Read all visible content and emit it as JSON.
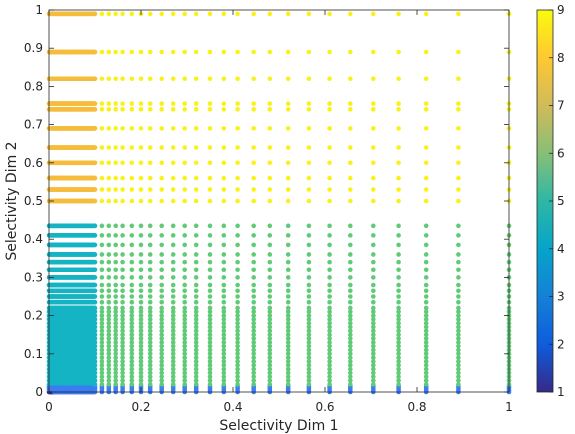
{
  "chart_data": {
    "type": "scatter",
    "xlabel": "Selectivity Dim 1",
    "ylabel": "Selectivity Dim 2",
    "xlim": [
      0,
      1
    ],
    "ylim": [
      0,
      1
    ],
    "x_ticks": [
      0,
      0.2,
      0.4,
      0.6,
      0.8,
      1
    ],
    "x_tick_labels": [
      "0",
      "0.2",
      "0.4",
      "0.6",
      "0.8",
      "1"
    ],
    "y_ticks": [
      0,
      0.1,
      0.2,
      0.3,
      0.4,
      0.5,
      0.6,
      0.7,
      0.8,
      0.9,
      1
    ],
    "y_tick_labels": [
      "0",
      "0.1",
      "0.2",
      "0.3",
      "0.4",
      "0.5",
      "0.6",
      "0.7",
      "0.8",
      "0.9",
      "1"
    ],
    "grid": false,
    "colormap": "parula",
    "color_range": [
      1,
      9
    ],
    "colorbar_ticks": [
      1,
      2,
      3,
      4,
      5,
      6,
      7,
      8,
      9
    ],
    "colorbar_tick_labels": [
      "1",
      "2",
      "3",
      "4",
      "5",
      "6",
      "7",
      "8",
      "9"
    ],
    "colors": {
      "c1": "#352a87",
      "c3": "#3c7cf4",
      "c5": "#15b4c4",
      "c6": "#5fcb77",
      "c8": "#f5bd3c",
      "c9": "#f9f21a"
    },
    "grid_x_coarse": [
      0,
      0.015,
      0.03,
      0.045,
      0.06,
      0.075,
      0.09,
      0.1,
      0.115,
      0.13,
      0.145,
      0.16,
      0.18,
      0.2,
      0.22,
      0.245,
      0.27,
      0.295,
      0.32,
      0.35,
      0.38,
      0.41,
      0.445,
      0.48,
      0.52,
      0.565,
      0.61,
      0.655,
      0.705,
      0.76,
      0.82,
      0.89,
      1
    ],
    "grid_y": [
      0,
      0.005,
      0.01,
      0.015,
      0.02,
      0.03,
      0.04,
      0.05,
      0.06,
      0.07,
      0.08,
      0.09,
      0.1,
      0.11,
      0.12,
      0.13,
      0.14,
      0.15,
      0.16,
      0.17,
      0.18,
      0.19,
      0.2,
      0.21,
      0.22,
      0.235,
      0.25,
      0.265,
      0.28,
      0.3,
      0.32,
      0.34,
      0.36,
      0.385,
      0.41,
      0.435,
      0.5,
      0.53,
      0.56,
      0.6,
      0.64,
      0.69,
      0.74,
      0.755,
      0.82,
      0.89,
      0.99
    ],
    "regions": [
      {
        "x_range": [
          0,
          0.1
        ],
        "y_range": [
          0.46,
          1.0
        ],
        "value": 8
      },
      {
        "x_range": [
          0.1,
          1.0
        ],
        "y_range": [
          0.46,
          1.0
        ],
        "value": 9
      },
      {
        "x_range": [
          0,
          0.1
        ],
        "y_range": [
          0.02,
          0.45
        ],
        "value": 5
      },
      {
        "x_range": [
          0.1,
          1.0
        ],
        "y_range": [
          0.02,
          0.45
        ],
        "value": 6
      },
      {
        "x_range": [
          0,
          1.0
        ],
        "y_range": [
          0.005,
          0.019
        ],
        "value": 3
      },
      {
        "x_range": [
          0,
          0.01
        ],
        "y_range": [
          0,
          0.005
        ],
        "value": 1
      },
      {
        "x_range": [
          0.01,
          1.0
        ],
        "y_range": [
          0,
          0.005
        ],
        "value": 3
      }
    ]
  }
}
